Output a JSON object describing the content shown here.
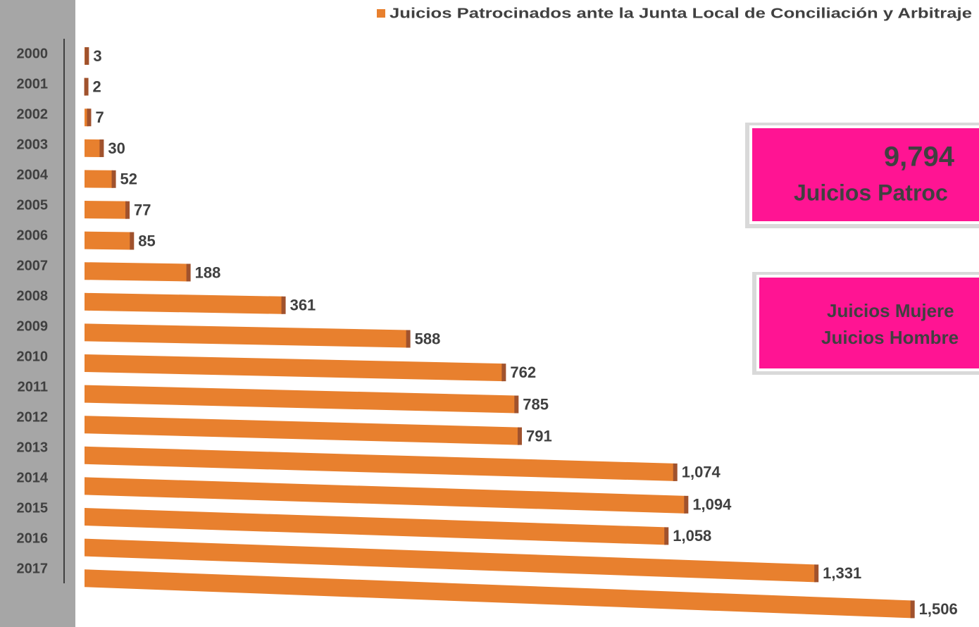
{
  "chart_data": {
    "type": "hbar",
    "legend_label": "Juicios Patrocinados ante la Junta Local de Conciliación y Arbitraje",
    "color": "#e8802e",
    "categories": [
      "2000",
      "2001",
      "2002",
      "2003",
      "2004",
      "2005",
      "2006",
      "2007",
      "2008",
      "2009",
      "2010",
      "2011",
      "2012",
      "2013",
      "2014",
      "2015",
      "2016",
      "2017"
    ],
    "values": [
      3,
      2,
      7,
      30,
      52,
      77,
      85,
      188,
      361,
      588,
      762,
      785,
      791,
      1074,
      1094,
      1058,
      1331,
      1506
    ],
    "value_labels": [
      "3",
      "2",
      "7",
      "30",
      "52",
      "77",
      "85",
      "188",
      "361",
      "588",
      "762",
      "785",
      "791",
      "1,074",
      "1,094",
      "1,058",
      "1,331",
      "1,506"
    ],
    "annotations": {
      "total": "9,794",
      "total_label": "Juicios Patroc",
      "women": "Juicios Mujere",
      "men": "Juicios Hombre"
    }
  }
}
